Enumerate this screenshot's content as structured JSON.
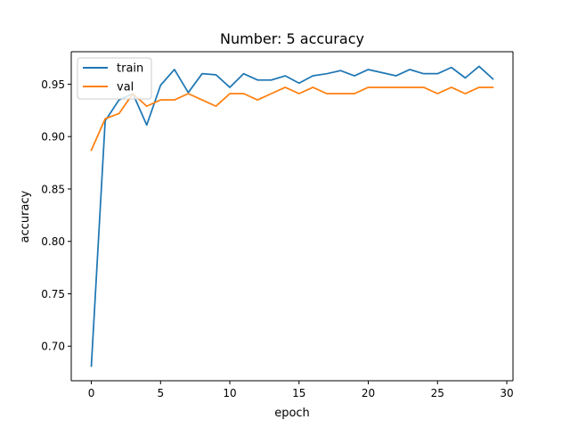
{
  "chart_data": {
    "type": "line",
    "title": "Number: 5 accuracy",
    "xlabel": "epoch",
    "ylabel": "accuracy",
    "xlim": [
      -1.45,
      30.45
    ],
    "ylim": [
      0.667,
      0.981
    ],
    "xticks": [
      0,
      5,
      10,
      15,
      20,
      25,
      30
    ],
    "yticks": [
      0.7,
      0.75,
      0.8,
      0.85,
      0.9,
      0.95
    ],
    "xtick_labels": [
      "0",
      "5",
      "10",
      "15",
      "20",
      "25",
      "30"
    ],
    "ytick_labels": [
      "0.70",
      "0.75",
      "0.80",
      "0.85",
      "0.90",
      "0.95"
    ],
    "grid": false,
    "legend_position": "top-left",
    "x": [
      0,
      1,
      2,
      3,
      4,
      5,
      6,
      7,
      8,
      9,
      10,
      11,
      12,
      13,
      14,
      15,
      16,
      17,
      18,
      19,
      20,
      21,
      22,
      23,
      24,
      25,
      26,
      27,
      28,
      29
    ],
    "series": [
      {
        "name": "train",
        "color": "#1f77b4",
        "values": [
          0.681,
          0.915,
          0.935,
          0.941,
          0.911,
          0.949,
          0.964,
          0.942,
          0.96,
          0.959,
          0.947,
          0.96,
          0.954,
          0.954,
          0.958,
          0.951,
          0.958,
          0.96,
          0.963,
          0.958,
          0.964,
          0.961,
          0.958,
          0.964,
          0.96,
          0.96,
          0.966,
          0.956,
          0.967,
          0.955
        ]
      },
      {
        "name": "val",
        "color": "#ff7f0e",
        "values": [
          0.887,
          0.917,
          0.922,
          0.941,
          0.929,
          0.935,
          0.935,
          0.941,
          0.935,
          0.929,
          0.941,
          0.941,
          0.935,
          0.941,
          0.947,
          0.941,
          0.947,
          0.941,
          0.941,
          0.941,
          0.947,
          0.947,
          0.947,
          0.947,
          0.947,
          0.941,
          0.947,
          0.941,
          0.947,
          0.947
        ]
      }
    ]
  }
}
